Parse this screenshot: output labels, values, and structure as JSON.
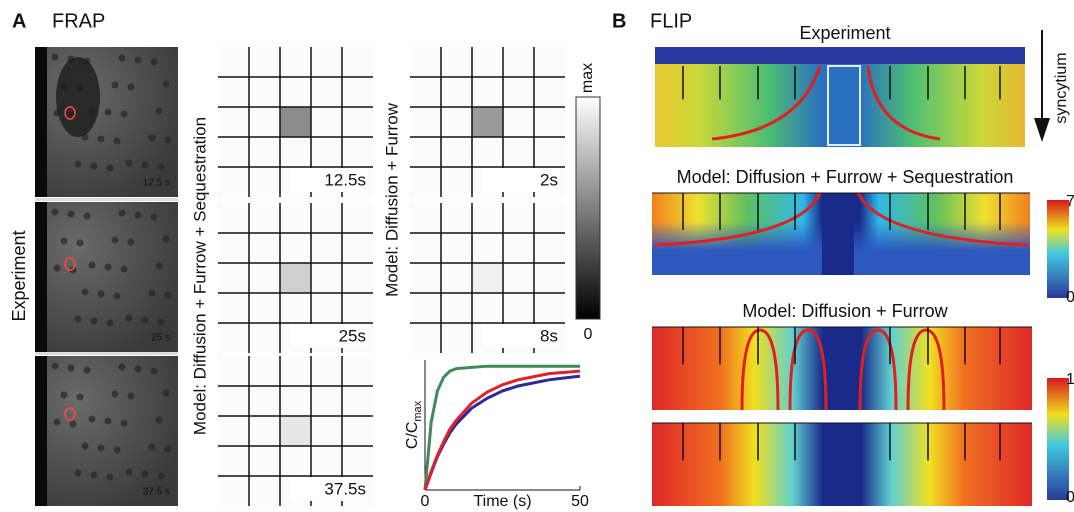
{
  "panel_a": {
    "label": "A",
    "title": "FRAP",
    "row_label": "Experiment",
    "image_times": [
      "12.5 s",
      "25 s",
      "37.5 s"
    ],
    "model_1": {
      "label": "Model: Diffusion + Furrow + Sequestration",
      "times": [
        "12.5s",
        "25s",
        "37.5s"
      ]
    },
    "model_2": {
      "label": "Model: Diffusion + Furrow",
      "times": [
        "2s",
        "8s"
      ]
    },
    "colorbar": {
      "max": "max",
      "min": "0"
    }
  },
  "chart_data": {
    "type": "line",
    "y_label": "C/C",
    "y_label_sub": "max",
    "x_label": "Time (s)",
    "xlim": [
      0,
      50
    ],
    "xticks": [
      0,
      50
    ],
    "ylim": [
      0,
      1.05
    ],
    "x": [
      0,
      2,
      4,
      6,
      8,
      10,
      15,
      20,
      25,
      30,
      40,
      50
    ],
    "series": [
      {
        "color": "#3f8a5a",
        "values": [
          0,
          0.55,
          0.8,
          0.91,
          0.96,
          0.98,
          0.99,
          1,
          1,
          1,
          1,
          1
        ]
      },
      {
        "color": "#2a2a9a",
        "values": [
          0,
          0.14,
          0.27,
          0.37,
          0.46,
          0.53,
          0.66,
          0.74,
          0.8,
          0.84,
          0.89,
          0.92
        ]
      },
      {
        "color": "#e0202a",
        "values": [
          0,
          0.15,
          0.28,
          0.39,
          0.49,
          0.56,
          0.7,
          0.79,
          0.85,
          0.89,
          0.94,
          0.96
        ]
      }
    ]
  },
  "panel_b": {
    "label": "B",
    "title": "FLIP",
    "experiment_title": "Experiment",
    "axis_label": "syncytium",
    "model_1": {
      "title": "Model: Diffusion + Furrow + Sequestration",
      "colorbar_max": "7",
      "colorbar_min": "0"
    },
    "model_2": {
      "title": "Model: Diffusion + Furrow",
      "colorbar_max": "1",
      "colorbar_min": "0"
    }
  }
}
